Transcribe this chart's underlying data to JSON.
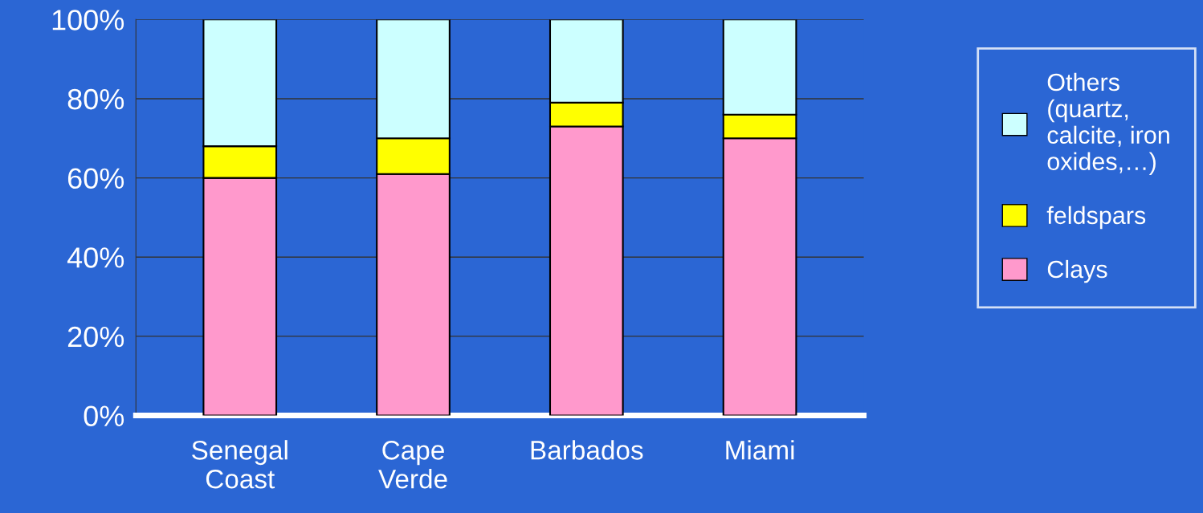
{
  "chart_data": {
    "type": "bar",
    "stacked": true,
    "categories": [
      "Senegal\nCoast",
      "Cape\nVerde",
      "Barbados",
      "Miami"
    ],
    "series": [
      {
        "name": "Clays",
        "color": "#ff99cc",
        "values": [
          60,
          61,
          73,
          70
        ]
      },
      {
        "name": "feldspars",
        "color": "#ffff00",
        "values": [
          8,
          9,
          6,
          6
        ]
      },
      {
        "name": "Others\n(quartz,\ncalcite, iron\noxides,…)",
        "color": "#ccffff",
        "values": [
          32,
          30,
          21,
          24
        ]
      }
    ],
    "ylim": [
      0,
      100
    ],
    "yticks": [
      {
        "value": 0,
        "label": "0%"
      },
      {
        "value": 20,
        "label": "20%"
      },
      {
        "value": 40,
        "label": "40%"
      },
      {
        "value": 60,
        "label": "60%"
      },
      {
        "value": 80,
        "label": "80%"
      },
      {
        "value": 100,
        "label": "100%"
      }
    ],
    "grid": "y",
    "legend": "right"
  }
}
